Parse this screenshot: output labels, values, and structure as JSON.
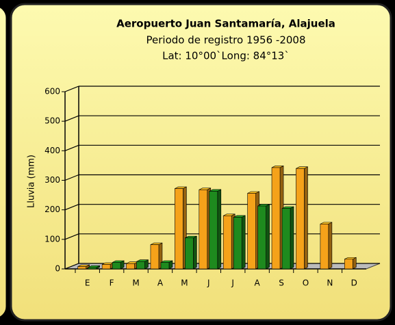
{
  "chart_data": {
    "type": "bar",
    "title": "Aeropuerto Juan Santamaría, Alajuela",
    "subtitle": "Periodo de registro 1956 -2008",
    "location": "Lat: 10°00`Long: 84°13`",
    "y_label": "Lluvia (mm)",
    "categories": [
      "E",
      "F",
      "M",
      "A",
      "M",
      "J",
      "J",
      "A",
      "S",
      "O",
      "N",
      "D"
    ],
    "series": [
      {
        "color": "#f5a21a",
        "values": [
          8,
          15,
          18,
          82,
          272,
          268,
          180,
          256,
          343,
          340,
          152,
          33
        ]
      },
      {
        "color": "#1e8a1e",
        "values": [
          5,
          22,
          25,
          22,
          105,
          263,
          175,
          213,
          205,
          null,
          null,
          null
        ]
      }
    ],
    "ylim": [
      0,
      600
    ],
    "yticks": [
      0,
      100,
      200,
      300,
      400,
      500,
      600
    ],
    "grid": true
  }
}
